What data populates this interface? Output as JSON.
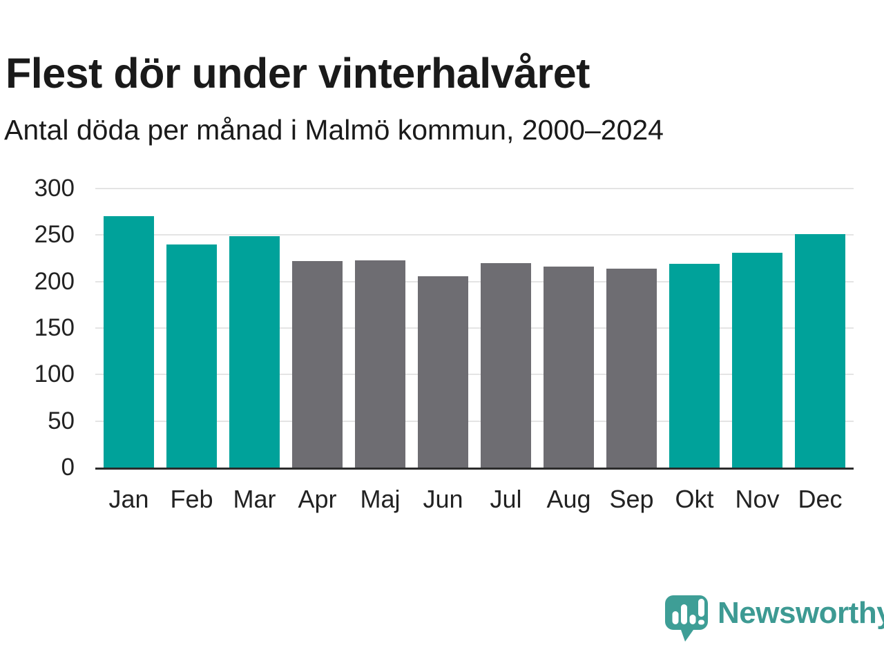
{
  "title": "Flest dör under vinterhalvåret",
  "subtitle": "Antal döda per månad i Malmö kommun, 2000–2024",
  "chart_data": {
    "type": "bar",
    "categories": [
      "Jan",
      "Feb",
      "Mar",
      "Apr",
      "Maj",
      "Jun",
      "Jul",
      "Aug",
      "Sep",
      "Okt",
      "Nov",
      "Dec"
    ],
    "values": [
      270,
      240,
      249,
      222,
      223,
      206,
      220,
      216,
      214,
      219,
      231,
      251
    ],
    "bar_groups": [
      "winter",
      "winter",
      "winter",
      "summer",
      "summer",
      "summer",
      "summer",
      "summer",
      "summer",
      "winter",
      "winter",
      "winter"
    ],
    "group_colors": {
      "winter": "#00a29a",
      "summer": "#6e6d72"
    },
    "title": "Flest dör under vinterhalvåret",
    "subtitle": "Antal döda per månad i Malmö kommun, 2000–2024",
    "xlabel": "",
    "ylabel": "",
    "ylim": [
      0,
      300
    ],
    "yticks": [
      0,
      50,
      100,
      150,
      200,
      250,
      300
    ],
    "grid": true,
    "grid_color": "#e4e4e4",
    "axis_color": "#2b2b2b",
    "legend": "none"
  },
  "branding": {
    "logo_text": "Newsworthy",
    "logo_text_color": "#3d9a93",
    "icon_color": "#3e9e96",
    "icon_name": "newsworthy-speech-bubble-chart-icon"
  }
}
